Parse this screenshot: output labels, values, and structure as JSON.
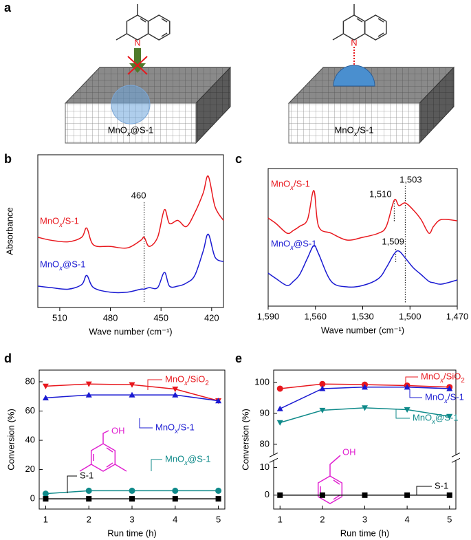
{
  "figure": {
    "panel_labels": [
      "a",
      "b",
      "c",
      "d",
      "e"
    ],
    "diagram": {
      "left": {
        "atom": "N",
        "label": "MnOx@S-1"
      },
      "right": {
        "atom": "N",
        "label": "MnOx/S-1"
      }
    }
  },
  "chart_data": [
    {
      "type": "line",
      "smooth": true,
      "xlabel": "Wave number (cm⁻¹)",
      "ylabel": "Absorbance",
      "x": [
        523,
        515,
        505,
        497,
        494,
        490,
        480,
        470,
        462,
        460,
        457,
        452,
        448,
        445,
        440,
        435,
        430,
        425,
        422,
        418,
        413
      ],
      "xlim": [
        523,
        413
      ],
      "xticks": [
        510,
        480,
        450,
        420
      ],
      "ylim": [
        0,
        100
      ],
      "series": [
        {
          "name": "MnOx/S-1",
          "color": "#e8171d",
          "values": [
            46,
            44,
            43,
            46,
            52,
            41,
            40,
            39,
            44,
            46,
            40,
            46,
            64,
            55,
            57,
            53,
            62,
            75,
            86,
            66,
            57
          ]
        },
        {
          "name": "MnOx@S-1",
          "color": "#1a1ad2",
          "values": [
            14,
            13,
            12,
            15,
            21,
            13,
            10,
            10,
            12,
            12,
            13,
            13,
            23,
            14,
            14,
            16,
            21,
            37,
            48,
            33,
            30
          ]
        }
      ],
      "markers": [
        460
      ]
    },
    {
      "type": "line",
      "smooth": true,
      "xlabel": "Wave number (cm⁻¹)",
      "x": [
        1590,
        1585,
        1578,
        1574,
        1570,
        1565,
        1561,
        1558,
        1550,
        1540,
        1530,
        1520,
        1515,
        1510,
        1507,
        1503,
        1498,
        1493,
        1488,
        1485,
        1480,
        1470
      ],
      "xlim": [
        1590,
        1470
      ],
      "xticks": [
        {
          "value": 1590,
          "label": "1,590"
        },
        {
          "value": 1560,
          "label": "1,560"
        },
        {
          "value": 1530,
          "label": "1,530"
        },
        {
          "value": 1500,
          "label": "1,500"
        },
        {
          "value": 1470,
          "label": "1,470"
        }
      ],
      "ylim": [
        0,
        100
      ],
      "series": [
        {
          "name": "MnOx/S-1",
          "color": "#e8171d",
          "values": [
            64,
            60,
            53,
            55,
            58,
            63,
            84,
            58,
            53,
            48,
            50,
            53,
            58,
            77,
            73,
            75,
            70,
            63,
            53,
            58,
            63,
            62
          ]
        },
        {
          "name": "MnOx@S-1",
          "color": "#1a1ad2",
          "values": [
            24,
            20,
            15,
            18,
            23,
            35,
            44,
            38,
            18,
            14,
            15,
            20,
            28,
            38,
            40,
            35,
            28,
            23,
            18,
            17,
            16,
            19
          ]
        }
      ],
      "markers": [
        {
          "value": 1510,
          "label": "1,510"
        },
        {
          "value": 1503,
          "label": "1,503"
        },
        {
          "value": 1509,
          "label": "1,509"
        }
      ]
    },
    {
      "type": "line",
      "xlabel": "Run time (h)",
      "ylabel": "Conversion (%)",
      "molecule_label": "OH",
      "x": [
        1,
        2,
        3,
        4,
        5
      ],
      "xlim": [
        0.85,
        5.15
      ],
      "xticks": [
        1,
        2,
        3,
        4,
        5
      ],
      "ylim": [
        -7,
        88
      ],
      "yticks": [
        0,
        20,
        40,
        60,
        80
      ],
      "series": [
        {
          "name": "MnOx/SiO2",
          "color": "#e8171d",
          "marker": "triangle-down",
          "values": [
            77,
            78.5,
            78,
            75,
            67
          ]
        },
        {
          "name": "MnOx/S-1",
          "color": "#1a1ad2",
          "marker": "triangle-up",
          "values": [
            69,
            71,
            71,
            71,
            67
          ]
        },
        {
          "name": "MnOx@S-1",
          "color": "#0f8a8a",
          "marker": "circle",
          "values": [
            3.5,
            5.5,
            5.5,
            5.5,
            5.5
          ]
        },
        {
          "name": "S-1",
          "color": "#000000",
          "marker": "square",
          "values": [
            0,
            0,
            0,
            0,
            0
          ]
        }
      ]
    },
    {
      "type": "line",
      "xlabel": "Run time (h)",
      "ylabel": "Conversion (%)",
      "molecule_label": "OH",
      "x": [
        1,
        2,
        3,
        4,
        5
      ],
      "xlim": [
        0.85,
        5.15
      ],
      "xticks": [
        1,
        2,
        3,
        4,
        5
      ],
      "ylim": [
        -5,
        104
      ],
      "ybreak": [
        12,
        77
      ],
      "yticks": [
        0,
        10,
        80,
        90,
        100
      ],
      "series": [
        {
          "name": "MnOx/SiO2",
          "color": "#e8171d",
          "marker": "circle",
          "values": [
            98,
            99.5,
            99.3,
            99,
            98.5
          ]
        },
        {
          "name": "MnOx/S-1",
          "color": "#1a1ad2",
          "marker": "triangle-up",
          "values": [
            91.5,
            98,
            98.5,
            98.5,
            98
          ]
        },
        {
          "name": "MnOx@S-1",
          "color": "#0f8a8a",
          "marker": "triangle-down",
          "values": [
            87,
            91,
            91.8,
            91.2,
            89
          ]
        },
        {
          "name": "S-1",
          "color": "#000000",
          "marker": "square",
          "values": [
            0,
            0,
            0,
            0,
            0
          ]
        }
      ]
    }
  ]
}
